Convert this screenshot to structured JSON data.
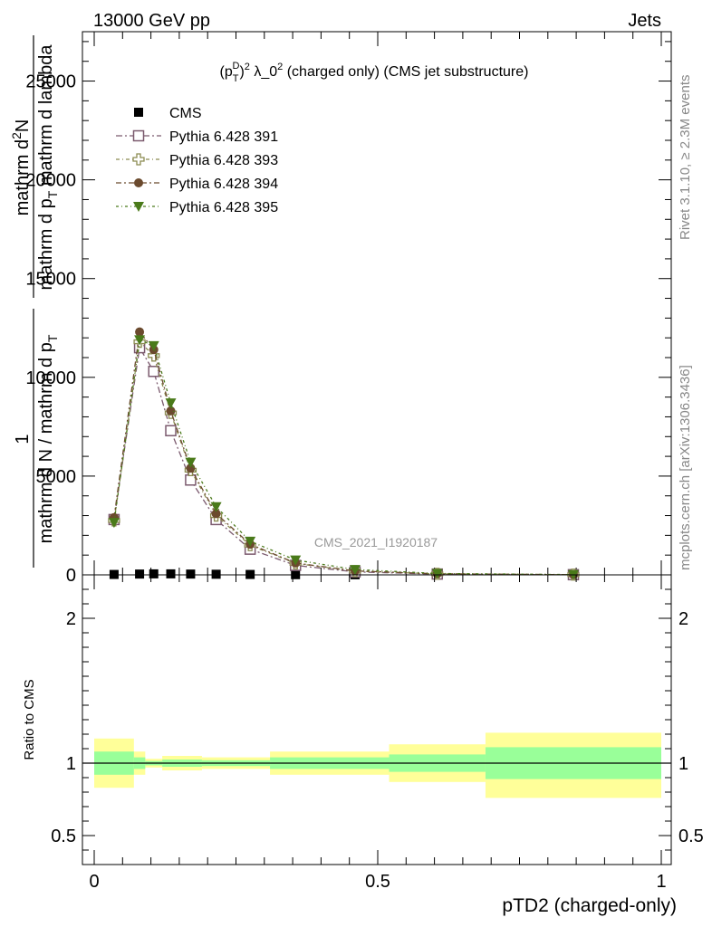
{
  "header": {
    "left": "13000 GeV pp",
    "right": "Jets"
  },
  "side_labels": {
    "rivet": "Rivet 3.1.10, ≥ 2.3M events",
    "mcplots": "mcplots.cern.ch [arXiv:1306.3436]"
  },
  "watermark": "CMS_2021_I1920187",
  "colors": {
    "cms": "#000000",
    "p391": "#7b5a6e",
    "p393": "#8b8b50",
    "p394": "#6b4a2e",
    "p395": "#4a7a1a",
    "band_inner": "#99ff99",
    "band_outer": "#ffff99"
  },
  "chart_data": [
    {
      "type": "scatter",
      "title": "(p_T^D)^2 λ_0^2 (charged only) (CMS jet substructure)",
      "title_parts": {
        "p": "(p",
        "sup_d": "D",
        "sub_t": "T",
        "close": ")",
        "sup_2": "2",
        "mid": " λ_0",
        "sup_2b": "2",
        "rest": " (charged only) (CMS jet substructure)"
      },
      "ylabel": "1 / mathrm d N / mathrm d p_T mathrm d^2N / mathrm d p_T mathrm d lambda",
      "ylabel_parts": {
        "num_line1": "1",
        "den_line1": "mathrm d N / mathrm d p",
        "den_line1_sub": "T",
        "num_line2": "mathrm d",
        "num_line2_sup": "2",
        "num_line2_end": "N",
        "den_line2": "mathrm d p",
        "den_line2_sub": "T",
        "den_line2_end": " mathrm d lambda"
      },
      "xlim": [
        0,
        1
      ],
      "ylim": [
        0,
        27500
      ],
      "yticks": [
        0,
        5000,
        10000,
        15000,
        20000,
        25000
      ],
      "ytick_labels": [
        "0",
        "5000",
        "10000",
        "15000",
        "20000",
        "25000"
      ],
      "x": [
        0.035,
        0.08,
        0.105,
        0.135,
        0.17,
        0.215,
        0.275,
        0.355,
        0.46,
        0.605,
        0.845
      ],
      "series": [
        {
          "name": "CMS",
          "marker": "square-filled",
          "values": [
            20,
            40,
            50,
            50,
            40,
            30,
            20,
            10,
            5,
            2,
            1
          ]
        },
        {
          "name": "Pythia 6.428 391",
          "marker": "square-open",
          "values": [
            2800,
            11500,
            10300,
            7300,
            4800,
            2800,
            1300,
            480,
            150,
            40,
            8
          ]
        },
        {
          "name": "Pythia 6.428 393",
          "marker": "cross-open",
          "values": [
            2750,
            11800,
            11100,
            8200,
            5300,
            3000,
            1500,
            580,
            190,
            50,
            10
          ]
        },
        {
          "name": "Pythia 6.428 394",
          "marker": "circle-filled",
          "values": [
            2900,
            12300,
            11400,
            8300,
            5400,
            3100,
            1550,
            600,
            200,
            55,
            11
          ]
        },
        {
          "name": "Pythia 6.428 395",
          "marker": "triangle-down",
          "values": [
            2650,
            11900,
            11600,
            8700,
            5700,
            3450,
            1700,
            750,
            270,
            70,
            14
          ]
        }
      ]
    },
    {
      "type": "area",
      "ylabel": "Ratio to CMS",
      "xlabel": "pTD2 (charged-only)",
      "xlim": [
        0,
        1
      ],
      "ylim": [
        0.3,
        2.3
      ],
      "yticks": [
        0.5,
        1,
        2
      ],
      "ytick_labels": [
        "0.5",
        "1",
        "2"
      ],
      "xticks": [
        0,
        0.5,
        1
      ],
      "xtick_labels": [
        "0",
        "0.5",
        "1"
      ],
      "reference": 1,
      "bins": [
        {
          "lo": 0.0,
          "hi": 0.07,
          "inner": [
            0.92,
            1.08
          ],
          "outer": [
            0.83,
            1.17
          ]
        },
        {
          "lo": 0.07,
          "hi": 0.09,
          "inner": [
            0.96,
            1.04
          ],
          "outer": [
            0.92,
            1.08
          ]
        },
        {
          "lo": 0.09,
          "hi": 0.12,
          "inner": [
            0.985,
            1.015
          ],
          "outer": [
            0.97,
            1.03
          ]
        },
        {
          "lo": 0.12,
          "hi": 0.19,
          "inner": [
            0.975,
            1.025
          ],
          "outer": [
            0.95,
            1.05
          ]
        },
        {
          "lo": 0.19,
          "hi": 0.31,
          "inner": [
            0.98,
            1.02
          ],
          "outer": [
            0.96,
            1.04
          ]
        },
        {
          "lo": 0.31,
          "hi": 0.52,
          "inner": [
            0.96,
            1.04
          ],
          "outer": [
            0.92,
            1.08
          ]
        },
        {
          "lo": 0.52,
          "hi": 0.69,
          "inner": [
            0.94,
            1.06
          ],
          "outer": [
            0.87,
            1.13
          ]
        },
        {
          "lo": 0.69,
          "hi": 1.0,
          "inner": [
            0.89,
            1.11
          ],
          "outer": [
            0.76,
            1.21
          ]
        }
      ]
    }
  ]
}
